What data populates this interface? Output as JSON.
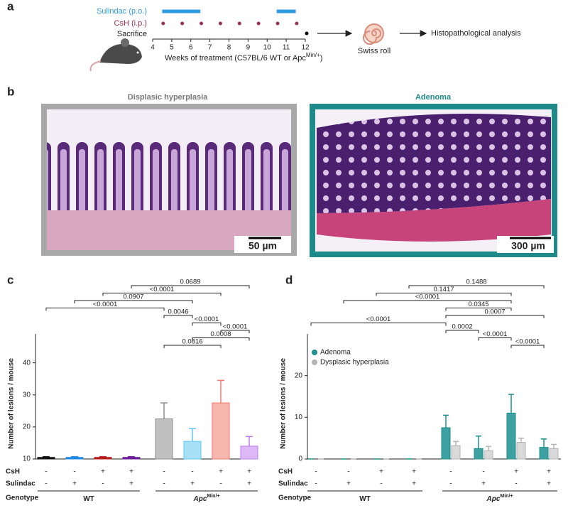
{
  "panel_a": {
    "label": "a",
    "sulindac": "Sulindac (p.o.)",
    "csh": "CsH (i.p.)",
    "sacrifice": "Sacrifice",
    "xlabel": "Weeks of treatment (C57BL/6 WT or Apc",
    "xlabel_sup": "Min/+",
    "xlabel_end": ")",
    "xlim": [
      4,
      12
    ],
    "xticks": [
      4,
      5,
      6,
      7,
      8,
      9,
      10,
      11,
      12
    ],
    "sulindac_periods": [
      [
        4.5,
        6.5
      ],
      [
        10.5,
        11.5
      ]
    ],
    "csh_doses": [
      4.55,
      5.55,
      6.55,
      7.55,
      8.55,
      9.55,
      10.55,
      11.55
    ],
    "sacrifice_week": 12,
    "steps": [
      "Swiss roll",
      "Histopathological analysis"
    ]
  },
  "panel_b": {
    "label": "b",
    "images": [
      {
        "title": "Displasic hyperplasia",
        "scale": "50 µm"
      },
      {
        "title": "Adenoma",
        "scale": "300 µm"
      }
    ]
  },
  "chart_data": [
    {
      "type": "bar",
      "label": "c",
      "ylabel": "Number of lesions / mouse",
      "ylim": [
        10,
        49
      ],
      "yticks": [
        10,
        20,
        30,
        40
      ],
      "series": [
        {
          "values": [
            10.5,
            10.5,
            10.5,
            10.5,
            22.5,
            15.5,
            27.5,
            14
          ],
          "errors": [
            0.2,
            0.2,
            0.2,
            0.2,
            5,
            4,
            7,
            3
          ],
          "colors": [
            "#111111",
            "#1e88e5",
            "#b71c1c",
            "#6a1b9a",
            "#8c8c8c",
            "#5ec8f2",
            "#f07a6c",
            "#c27cf0"
          ]
        }
      ],
      "rows": [
        {
          "label": "CsH",
          "values": [
            "-",
            "-",
            "+",
            "+",
            "-",
            "-",
            "+",
            "+"
          ]
        },
        {
          "label": "Sulindac",
          "values": [
            "-",
            "+",
            "-",
            "+",
            "-",
            "+",
            "-",
            "+"
          ]
        }
      ],
      "genotype": {
        "label": "Genotype",
        "groups": [
          {
            "name": "WT",
            "sup": "",
            "from": 0,
            "to": 3
          },
          {
            "name": "Apc",
            "sup": "Min/+",
            "from": 4,
            "to": 7
          }
        ]
      },
      "comparisons": [
        {
          "groups": [
            3,
            7
          ],
          "label": "0.0689"
        },
        {
          "groups": [
            2,
            6
          ],
          "label": "<0.0001"
        },
        {
          "groups": [
            1,
            5
          ],
          "label": "0.0907"
        },
        {
          "groups": [
            0,
            4
          ],
          "label": "<0.0001"
        },
        {
          "groups": [
            4,
            5
          ],
          "label": "0.0046"
        },
        {
          "groups": [
            5,
            6
          ],
          "label": "<0.0001"
        },
        {
          "groups": [
            6,
            7
          ],
          "label": "<0.0001"
        },
        {
          "groups": [
            5,
            7
          ],
          "label": "0.0008"
        },
        {
          "groups": [
            4,
            6
          ],
          "label": "0.0816"
        }
      ]
    },
    {
      "type": "grouped_bar",
      "label": "d",
      "ylabel": "Number of lesions / mouse",
      "ylim": [
        0,
        30
      ],
      "yticks": [
        0,
        10,
        20
      ],
      "series": [
        {
          "name": "Adenoma",
          "color": "#1b9090",
          "values": [
            0,
            0,
            0,
            0,
            7.5,
            2.5,
            11,
            2.8
          ],
          "errors": [
            0,
            0,
            0,
            0,
            3,
            3,
            4.5,
            2
          ]
        },
        {
          "name": "Dysplasic hyperplasia",
          "color": "#b4b4b4",
          "values": [
            0,
            0,
            0,
            0,
            3.2,
            2,
            4,
            2.5
          ],
          "errors": [
            0,
            0,
            0,
            0,
            1,
            1,
            1,
            1
          ]
        }
      ],
      "rows": [
        {
          "label": "CsH",
          "values": [
            "-",
            "-",
            "+",
            "+",
            "-",
            "-",
            "+",
            "+"
          ]
        },
        {
          "label": "Sulindac",
          "values": [
            "-",
            "+",
            "-",
            "+",
            "-",
            "+",
            "-",
            "+"
          ]
        }
      ],
      "genotype": {
        "label": "Genotype",
        "groups": [
          {
            "name": "WT",
            "sup": "",
            "from": 0,
            "to": 3
          },
          {
            "name": "Apc",
            "sup": "Min/+",
            "from": 4,
            "to": 7
          }
        ]
      },
      "comparisons": [
        {
          "groups": [
            3,
            7
          ],
          "label": "0.1488"
        },
        {
          "groups": [
            2,
            6
          ],
          "label": "0.1417"
        },
        {
          "groups": [
            1,
            6
          ],
          "label": "<0.0001"
        },
        {
          "groups": [
            4,
            6
          ],
          "label": "0.0345"
        },
        {
          "groups": [
            4,
            7
          ],
          "label": "0.0007"
        },
        {
          "groups": [
            0,
            4
          ],
          "label": "<0.0001"
        },
        {
          "groups": [
            4,
            5
          ],
          "label": "0.0002"
        },
        {
          "groups": [
            5,
            6
          ],
          "label": "<0.0001"
        },
        {
          "groups": [
            6,
            7
          ],
          "label": "<0.0001"
        }
      ]
    }
  ]
}
